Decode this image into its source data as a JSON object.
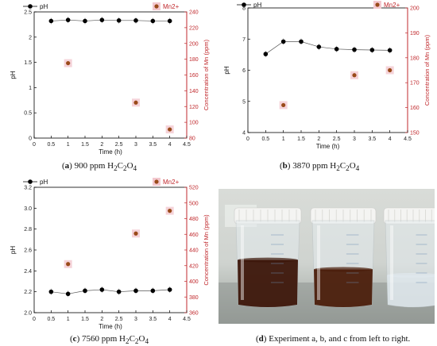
{
  "chart_data": [
    {
      "id": "a",
      "type": "scatter",
      "caption_letter": "a",
      "caption_text": "900 ppm H2C2O4",
      "caption_parts": [
        "900 ppm H",
        "2",
        "C",
        "2",
        "O",
        "4"
      ],
      "xlabel": "Time (h)",
      "ylabel_left": "pH",
      "ylabel_right": "Concentration of Mn (ppm)",
      "xlim": [
        0,
        4.5
      ],
      "xticks": [
        "0",
        "0.5",
        "1",
        "1.5",
        "2",
        "2.5",
        "3",
        "3.5",
        "4",
        "4.5"
      ],
      "ylim_left": [
        0,
        2.5
      ],
      "yticks_left": [
        "0",
        "0.5",
        "1",
        "1.5",
        "2",
        "2.5"
      ],
      "ylim_right": [
        80,
        240
      ],
      "yticks_right": [
        "80",
        "100",
        "120",
        "140",
        "160",
        "180",
        "200",
        "220",
        "240"
      ],
      "legend_position": "top",
      "series": [
        {
          "name": "pH",
          "axis": "left",
          "color": "#000000",
          "line": true,
          "x": [
            0.5,
            1,
            1.5,
            2,
            2.5,
            3,
            3.5,
            4
          ],
          "y": [
            2.32,
            2.34,
            2.32,
            2.34,
            2.33,
            2.33,
            2.32,
            2.32
          ]
        },
        {
          "name": "Mn2+",
          "axis": "right",
          "color": "#9a4a1a",
          "line": false,
          "x": [
            1,
            3,
            4
          ],
          "y": [
            175,
            125,
            91
          ]
        }
      ]
    },
    {
      "id": "b",
      "type": "scatter",
      "caption_letter": "b",
      "caption_text": "3870 ppm H2C2O4",
      "caption_parts": [
        "3870 ppm H",
        "2",
        "C",
        "2",
        "O",
        "4"
      ],
      "xlabel": "Time (h)",
      "ylabel_left": "pH",
      "ylabel_right": "Concentration of Mn (ppm)",
      "xlim": [
        0,
        4.5
      ],
      "xticks": [
        "0",
        "0.5",
        "1",
        "1.5",
        "2",
        "2.5",
        "3",
        "3.5",
        "4",
        "4.5"
      ],
      "ylim_left": [
        4,
        8
      ],
      "yticks_left": [
        "4",
        "5",
        "6",
        "7",
        "8"
      ],
      "ylim_right": [
        150,
        200
      ],
      "yticks_right": [
        "150",
        "160",
        "170",
        "180",
        "190",
        "200"
      ],
      "legend_position": "top",
      "series": [
        {
          "name": "pH",
          "axis": "left",
          "color": "#000000",
          "line": true,
          "x": [
            0.5,
            1,
            1.5,
            2,
            2.5,
            3,
            3.5,
            4
          ],
          "y": [
            6.52,
            6.92,
            6.92,
            6.75,
            6.68,
            6.66,
            6.65,
            6.64
          ]
        },
        {
          "name": "Mn2+",
          "axis": "right",
          "color": "#9a4a1a",
          "line": false,
          "x": [
            1,
            3,
            4
          ],
          "y": [
            161,
            173,
            175
          ]
        }
      ]
    },
    {
      "id": "c",
      "type": "scatter",
      "caption_letter": "c",
      "caption_text": "7560 ppm H2C2O4",
      "caption_parts": [
        "7560 ppm H",
        "2",
        "C",
        "2",
        "O",
        "4"
      ],
      "xlabel": "Time (h)",
      "ylabel_left": "pH",
      "ylabel_right": "Concentration of Mn (ppm)",
      "xlim": [
        0,
        4.5
      ],
      "xticks": [
        "0",
        "0.5",
        "1",
        "1.5",
        "2",
        "2.5",
        "3",
        "3.5",
        "4",
        "4.5"
      ],
      "ylim_left": [
        2.0,
        3.2
      ],
      "yticks_left": [
        "2.0",
        "2.2",
        "2.4",
        "2.6",
        "2.8",
        "3.0",
        "3.2"
      ],
      "ylim_right": [
        360,
        520
      ],
      "yticks_right": [
        "360",
        "380",
        "400",
        "420",
        "440",
        "460",
        "480",
        "500",
        "520"
      ],
      "legend_position": "top",
      "series": [
        {
          "name": "pH",
          "axis": "left",
          "color": "#000000",
          "line": true,
          "x": [
            0.5,
            1,
            1.5,
            2,
            2.5,
            3,
            3.5,
            4
          ],
          "y": [
            2.2,
            2.18,
            2.21,
            2.22,
            2.2,
            2.21,
            2.21,
            2.22
          ]
        },
        {
          "name": "Mn2+",
          "axis": "right",
          "color": "#9a4a1a",
          "line": false,
          "x": [
            1,
            3,
            4
          ],
          "y": [
            422,
            461,
            490
          ]
        }
      ]
    }
  ],
  "photo": {
    "caption_letter": "d",
    "caption_text": "Experiment a, b, and c from left to right.",
    "containers": [
      {
        "liquid_color": "#3c1508",
        "liquid_level": 0.38
      },
      {
        "liquid_color": "#4a1c0a",
        "liquid_level": 0.3
      },
      {
        "liquid_color": "#dfe8ee",
        "liquid_level": 0.25
      }
    ]
  },
  "colors": {
    "ph_marker": "#000000",
    "mn_marker": "#9a4a1a",
    "mn_halo": "#f3c8cf",
    "axis_pH": "#000000",
    "axis_mn": "#c0282c"
  }
}
